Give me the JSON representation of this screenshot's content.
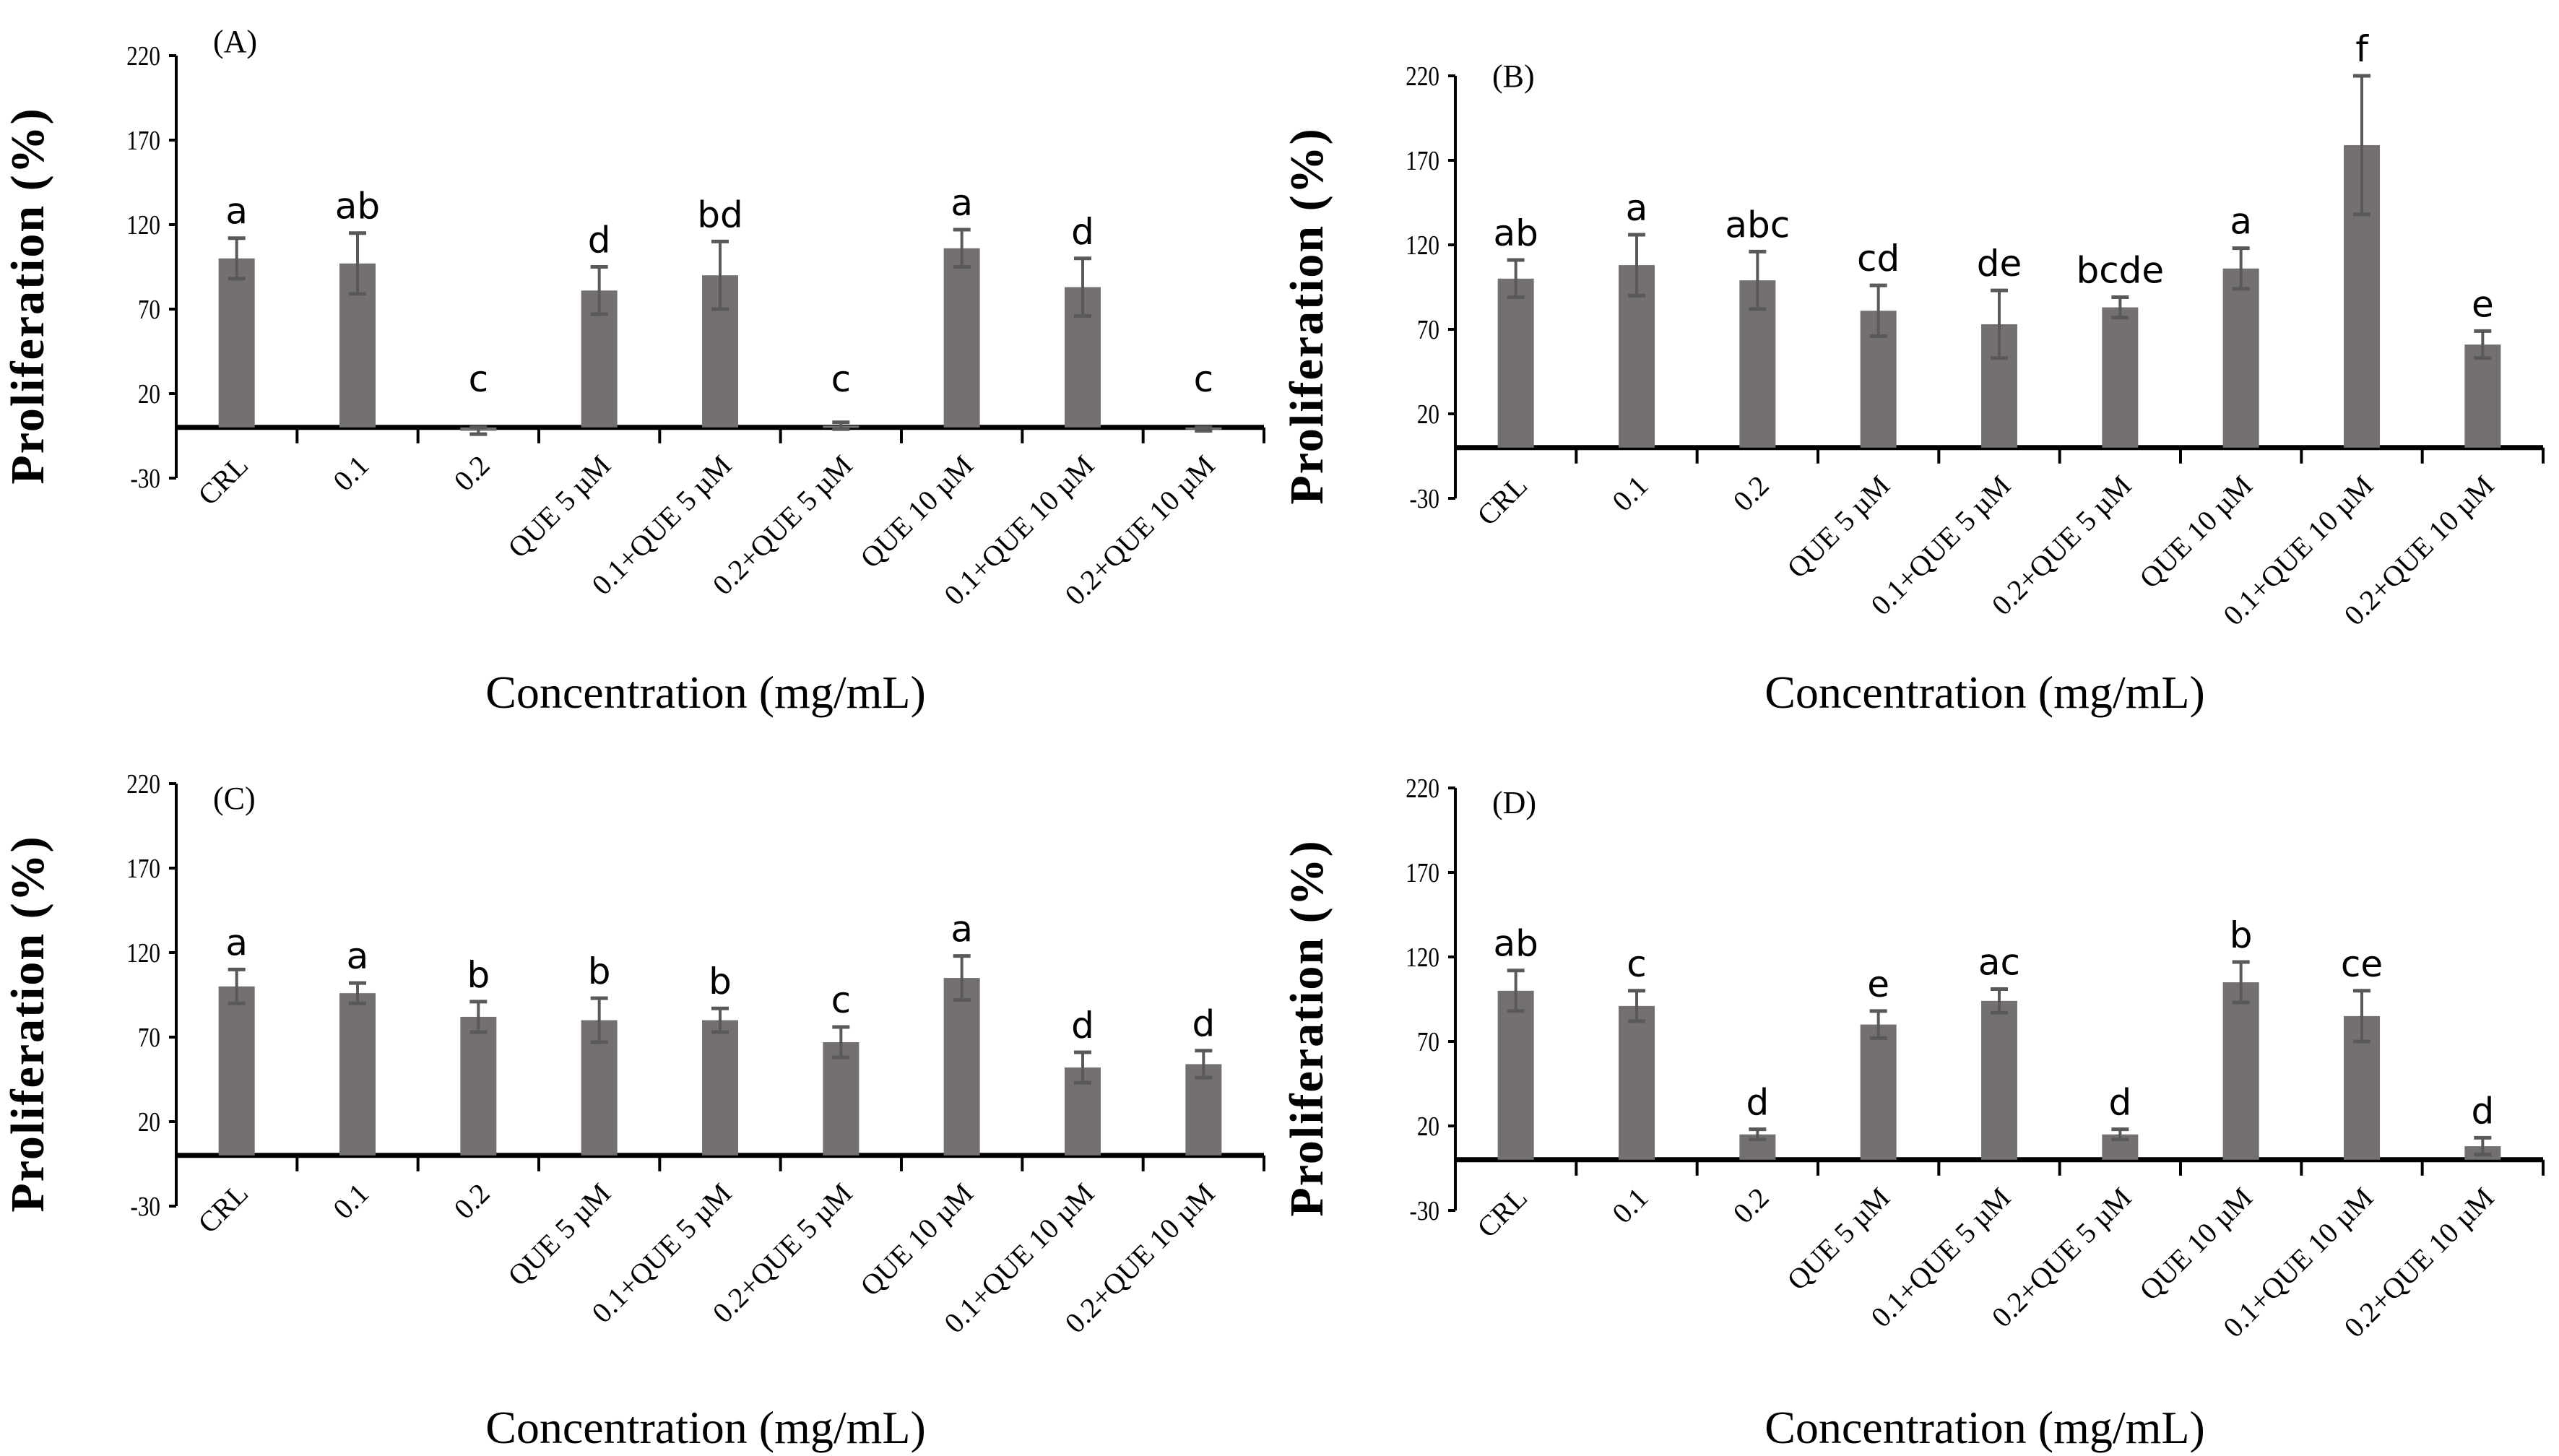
{
  "colors": {
    "bar": "#747070",
    "error": "#595959",
    "axis": "#000000"
  },
  "chart_data": [
    {
      "type": "bar",
      "panel_label": "(A)",
      "categories": [
        "CRL",
        "0.1",
        "0.2",
        "QUE 5 µM",
        "0.1+QUE 5 µM",
        "0.2+QUE 5 µM",
        "QUE 10 µM",
        "0.1+QUE 10 µM",
        "0.2+QUE 10 µM"
      ],
      "values": [
        100,
        97,
        -2,
        81,
        90,
        1,
        106,
        83,
        -1
      ],
      "errors": [
        12,
        18,
        2,
        14,
        20,
        2,
        11,
        17,
        1
      ],
      "significance": [
        "a",
        "ab",
        "c",
        "d",
        "bd",
        "c",
        "a",
        "d",
        "c"
      ],
      "xlabel": "Concentration (mg/mL)",
      "ylabel": "Proliferation (%)",
      "ylim": [
        -30,
        220
      ],
      "yticks": [
        "-30",
        "20",
        "70",
        "120",
        "170",
        "220"
      ],
      "grid": false
    },
    {
      "type": "bar",
      "panel_label": "(B)",
      "categories": [
        "CRL",
        "0.1",
        "0.2",
        "QUE 5 µM",
        "0.1+QUE 5 µM",
        "0.2+QUE 5 µM",
        "QUE 10 µM",
        "0.1+QUE 10 µM",
        "0.2+QUE 10 µM"
      ],
      "values": [
        100,
        108,
        99,
        81,
        73,
        83,
        106,
        179,
        61
      ],
      "errors": [
        11,
        18,
        17,
        15,
        20,
        6,
        12,
        41,
        8
      ],
      "significance": [
        "ab",
        "a",
        "abc",
        "cd",
        "de",
        "bcde",
        "a",
        "f",
        "e"
      ],
      "xlabel": "Concentration (mg/mL)",
      "ylabel": "Proliferation (%)",
      "ylim": [
        -30,
        220
      ],
      "yticks": [
        "-30",
        "20",
        "70",
        "120",
        "170",
        "220"
      ],
      "grid": false
    },
    {
      "type": "bar",
      "panel_label": "(C)",
      "categories": [
        "CRL",
        "0.1",
        "0.2",
        "QUE 5 µM",
        "0.1+QUE 5 µM",
        "0.2+QUE 5 µM",
        "QUE 10 µM",
        "0.1+QUE 10 µM",
        "0.2+QUE 10 µM"
      ],
      "values": [
        100,
        96,
        82,
        80,
        80,
        67,
        105,
        52,
        54
      ],
      "errors": [
        10,
        6,
        9,
        13,
        7,
        9,
        13,
        9,
        8
      ],
      "significance": [
        "a",
        "a",
        "b",
        "b",
        "b",
        "c",
        "a",
        "d",
        "d"
      ],
      "xlabel": "Concentration (mg/mL)",
      "ylabel": "Proliferation (%)",
      "ylim": [
        -30,
        220
      ],
      "yticks": [
        "-30",
        "20",
        "70",
        "120",
        "170",
        "220"
      ],
      "grid": false
    },
    {
      "type": "bar",
      "panel_label": "(D)",
      "categories": [
        "CRL",
        "0.1",
        "0.2",
        "QUE 5 µM",
        "0.1+QUE 5 µM",
        "0.2+QUE 5 µM",
        "QUE 10 µM",
        "0.1+QUE 10 µM",
        "0.2+QUE 10 µM"
      ],
      "values": [
        100,
        91,
        15,
        80,
        94,
        15,
        105,
        85,
        8
      ],
      "errors": [
        12,
        9,
        3,
        8,
        7,
        3,
        12,
        15,
        5
      ],
      "significance": [
        "ab",
        "c",
        "d",
        "e",
        "ac",
        "d",
        "b",
        "ce",
        "d"
      ],
      "xlabel": "Concentration (mg/mL)",
      "ylabel": "Proliferation (%)",
      "ylim": [
        -30,
        220
      ],
      "yticks": [
        "-30",
        "20",
        "70",
        "120",
        "170",
        "220"
      ],
      "grid": false
    }
  ]
}
